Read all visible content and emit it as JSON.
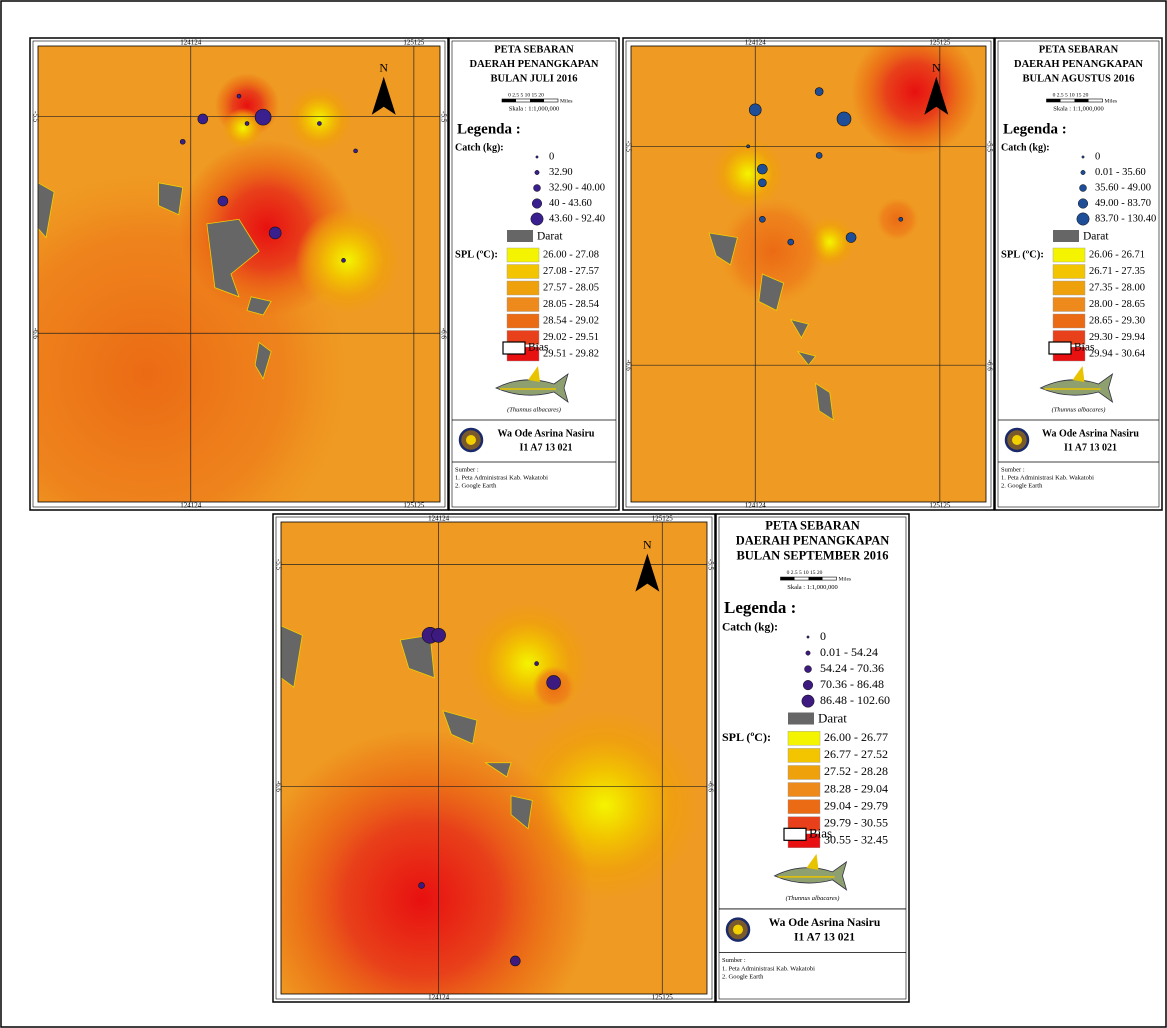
{
  "panels": [
    {
      "map": {
        "x_labels": [
          "124124",
          "125125"
        ],
        "y_labels": [
          "-5.5",
          "-6.6"
        ],
        "north": "N"
      },
      "legend": {
        "title": [
          "PETA SEBARAN",
          "DAERAH PENANGKAPAN",
          "BULAN JULI 2016"
        ],
        "scale_ticks": "0 2.5 5    10    15    20",
        "scale_unit": "Miles",
        "scale_text": "Skala :   1:1,000,000",
        "heading": "Legenda :",
        "catch_label": "Catch (kg):",
        "catch_classes": [
          "0",
          "32.90",
          "32.90 - 40.00",
          "40 - 43.60",
          "43.60 - 92.40"
        ],
        "land": "Darat",
        "spl_label": "SPL (ºC):",
        "spl_classes": [
          "26.00 - 27.08",
          "27.08 - 27.57",
          "27.57 - 28.05",
          "28.05 - 28.54",
          "28.54 - 29.02",
          "29.02 - 29.51",
          "29.51 - 29.82"
        ],
        "bias": "Bias",
        "species": "(Thunnus albacares)",
        "author": "Wa Ode Asrina Nasiru",
        "id": "I1 A7 13 021",
        "sources_heading": "Sumber :",
        "sources": [
          "1. Peta Administrasi Kab. Wakatobi",
          "2. Google Earth"
        ]
      }
    },
    {
      "map": {
        "x_labels": [
          "124124",
          "125125"
        ],
        "y_labels": [
          "-5.5",
          "-6.6"
        ],
        "north": "N"
      },
      "legend": {
        "title": [
          "PETA SEBARAN",
          "DAERAH PENANGKAPAN",
          "BULAN AGUSTUS 2016"
        ],
        "scale_ticks": "0 2.5 5    10    15    20",
        "scale_unit": "Miles",
        "scale_text": "Skala :   1:1,000,000",
        "heading": "Legenda :",
        "catch_label": "Catch (kg):",
        "catch_classes": [
          "0",
          "0.01 - 35.60",
          "35.60 - 49.00",
          "49.00 - 83.70",
          "83.70 - 130.40"
        ],
        "land": "Darat",
        "spl_label": "SPL (ºC):",
        "spl_classes": [
          "26.06 - 26.71",
          "26.71 - 27.35",
          "27.35 - 28.00",
          "28.00 - 28.65",
          "28.65 - 29.30",
          "29.30 - 29.94",
          "29.94 - 30.64"
        ],
        "bias": "Bias",
        "species": "(Thunnus albacares)",
        "author": "Wa Ode Asrina Nasiru",
        "id": "I1 A7 13 021",
        "sources_heading": "Sumber :",
        "sources": [
          "1. Peta Administrasi Kab. Wakatobi",
          "2. Google Earth"
        ]
      }
    },
    {
      "map": {
        "x_labels": [
          "124124",
          "125125"
        ],
        "y_labels": [
          "-5.5",
          "-6.6"
        ],
        "north": "N"
      },
      "legend": {
        "title": [
          "PETA SEBARAN",
          "DAERAH PENANGKAPAN",
          "BULAN SEPTEMBER 2016"
        ],
        "scale_ticks": "0 2.5 5    10    15    20",
        "scale_unit": "Miles",
        "scale_text": "Skala :   1:1,000,000",
        "heading": "Legenda :",
        "catch_label": "Catch (kg):",
        "catch_classes": [
          "0",
          "0.01 - 54.24",
          "54.24 - 70.36",
          "70.36 - 86.48",
          "86.48 - 102.60"
        ],
        "land": "Darat",
        "spl_label": "SPL (ºC):",
        "spl_classes": [
          "26.00 - 26.77",
          "26.77 - 27.52",
          "27.52 - 28.28",
          "28.28 - 29.04",
          "29.04 - 29.79",
          "29.79 - 30.55",
          "30.55 - 32.45"
        ],
        "bias": "Bias",
        "species": "(Thunnus albacares)",
        "author": "Wa Ode Asrina Nasiru",
        "id": "I1 A7 13 021",
        "sources_heading": "Sumber :",
        "sources": [
          "1. Peta Administrasi Kab. Wakatobi",
          "2. Google Earth"
        ]
      }
    }
  ]
}
